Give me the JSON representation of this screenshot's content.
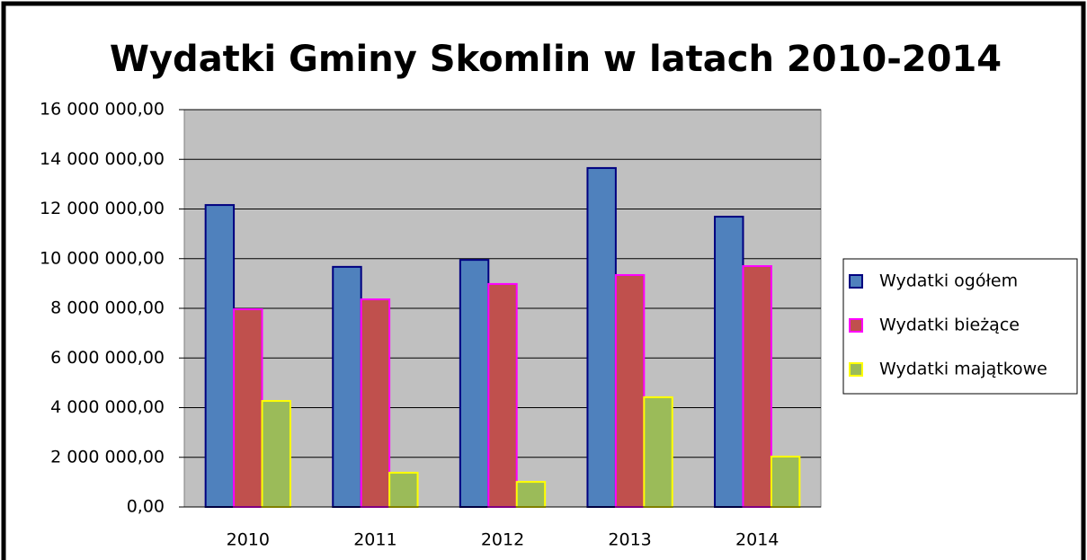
{
  "chart_data": {
    "type": "bar",
    "title": "Wydatki Gminy Skomlin w latach 2010-2014",
    "categories": [
      "2010",
      "2011",
      "2012",
      "2013",
      "2014"
    ],
    "series": [
      {
        "name": "Wydatki ogółem",
        "color": "#4f81bd",
        "edgecolor": "#000080",
        "values": [
          12160000,
          9670000,
          9950000,
          13650000,
          11690000
        ]
      },
      {
        "name": "Wydatki bieżące",
        "color": "#c0504d",
        "edgecolor": "#ff00ff",
        "values": [
          7960000,
          8360000,
          8980000,
          9340000,
          9700000
        ]
      },
      {
        "name": "Wydatki majątkowe",
        "color": "#9bbb59",
        "edgecolor": "#ffff00",
        "values": [
          4270000,
          1380000,
          1010000,
          4420000,
          2030000
        ]
      }
    ],
    "ylim": [
      0,
      16000000
    ],
    "yticks": [
      {
        "value": 0,
        "label": "0,00"
      },
      {
        "value": 2000000,
        "label": "2 000 000,00"
      },
      {
        "value": 4000000,
        "label": "4 000 000,00"
      },
      {
        "value": 6000000,
        "label": "6 000 000,00"
      },
      {
        "value": 8000000,
        "label": "8 000 000,00"
      },
      {
        "value": 10000000,
        "label": "10 000 000,00"
      },
      {
        "value": 12000000,
        "label": "12 000 000,00"
      },
      {
        "value": 14000000,
        "label": "14 000 000,00"
      },
      {
        "value": 16000000,
        "label": "16 000 000,00"
      }
    ],
    "grid": true,
    "legend": "right",
    "background": "#c0c0c0"
  }
}
